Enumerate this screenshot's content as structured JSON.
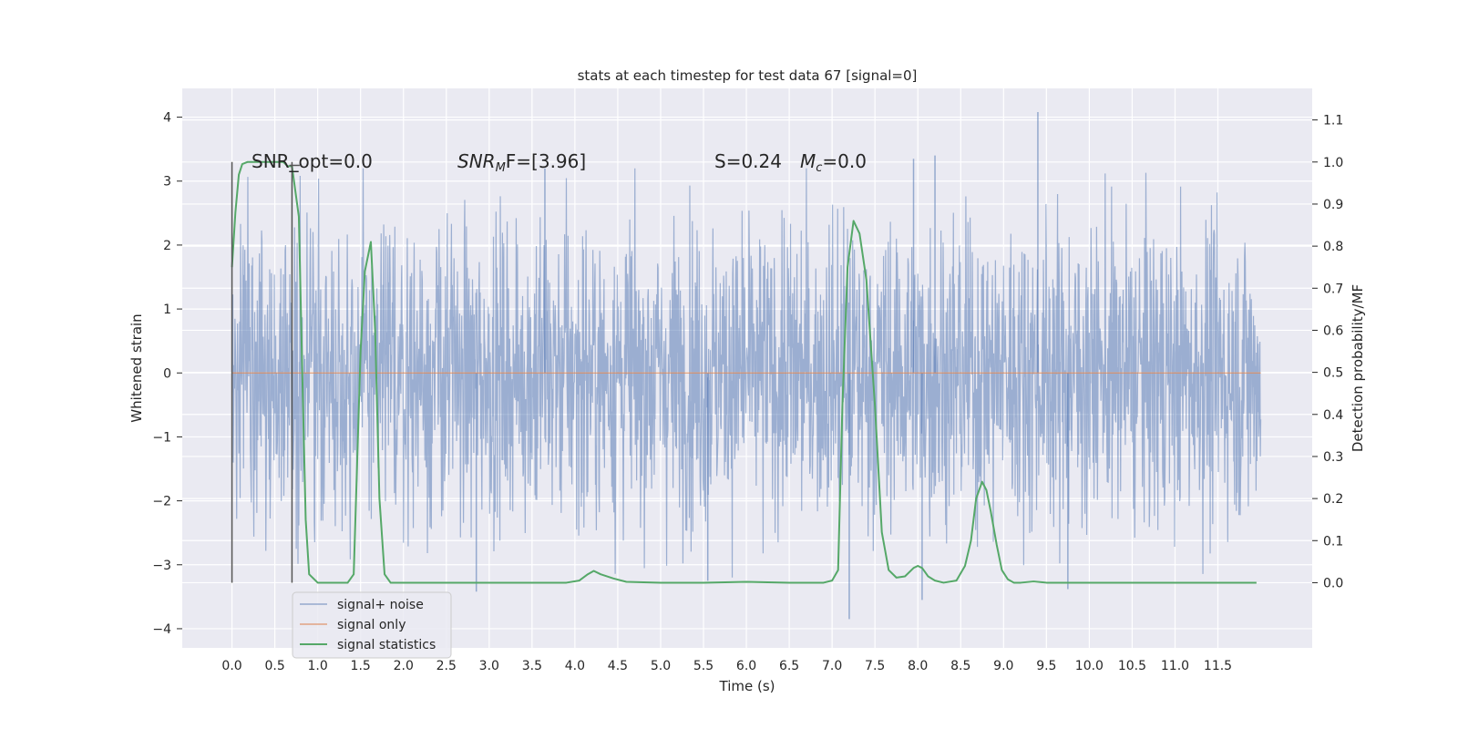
{
  "chart_data": {
    "type": "line",
    "title": "stats at each timestep for test data 67 [signal=0]",
    "xlabel": "Time (s)",
    "ylabel": "Whitened strain",
    "y2label": "Detection probability/MF",
    "xlim": [
      -0.58,
      12.6
    ],
    "ylim": [
      -4.3,
      4.45
    ],
    "y2lim": [
      -0.155,
      1.175
    ],
    "xticks": [
      "0.0",
      "0.5",
      "1.0",
      "1.5",
      "2.0",
      "2.5",
      "3.0",
      "3.5",
      "4.0",
      "4.5",
      "5.0",
      "5.5",
      "6.0",
      "6.5",
      "7.0",
      "7.5",
      "8.0",
      "8.5",
      "9.0",
      "9.5",
      "10.0",
      "10.5",
      "11.0",
      "11.5"
    ],
    "yticks": [
      "4",
      "3",
      "2",
      "1",
      "0",
      "−1",
      "−2",
      "−3",
      "−4"
    ],
    "y2ticks": [
      "1.1",
      "1.0",
      "0.9",
      "0.8",
      "0.7",
      "0.6",
      "0.5",
      "0.4",
      "0.3",
      "0.2",
      "0.1",
      "0.0"
    ],
    "grid": true,
    "legend_position": "lower-left",
    "colors": {
      "background": "#eaeaf2",
      "noise": "#4c72b0",
      "signal_only": "#dd8452",
      "statistics": "#55a868",
      "marker": "#555555"
    },
    "annotations": {
      "snr_opt_label": "SNR_opt=0.0",
      "snr_mf_label_main": "SNR",
      "snr_mf_label_sub": "M",
      "snr_mf_label_rest": "F=[3.96]",
      "s_label": "S=0.24",
      "mc_label_main": "M",
      "mc_label_sub": "c",
      "mc_label_rest": "=0.0"
    },
    "marker_lines_x": [
      0.0,
      0.7
    ],
    "series": [
      {
        "name": "signal+ noise",
        "noise_amplitude_typical": 1.5,
        "noise_spikes": [
          {
            "x": 9.4,
            "y": 4.08
          },
          {
            "x": 7.2,
            "y": -3.85
          },
          {
            "x": 2.85,
            "y": -3.42
          },
          {
            "x": 8.05,
            "y": -3.55
          },
          {
            "x": 9.75,
            "y": -3.38
          },
          {
            "x": 3.65,
            "y": 3.2
          },
          {
            "x": 7.95,
            "y": 3.35
          },
          {
            "x": 8.2,
            "y": 3.4
          },
          {
            "x": 5.55,
            "y": -3.25
          }
        ]
      },
      {
        "name": "signal only",
        "x": [
          0.0,
          12.0
        ],
        "y": [
          0.0,
          0.0
        ]
      },
      {
        "name": "signal statistics",
        "axis": "right",
        "x": [
          0.0,
          0.04,
          0.08,
          0.12,
          0.18,
          0.25,
          0.35,
          0.5,
          0.6,
          0.65,
          0.7,
          0.74,
          0.78,
          0.82,
          0.86,
          0.9,
          1.0,
          1.2,
          1.35,
          1.42,
          1.5,
          1.55,
          1.62,
          1.67,
          1.72,
          1.78,
          1.85,
          1.95,
          2.2,
          2.6,
          3.0,
          3.5,
          3.9,
          4.05,
          4.15,
          4.22,
          4.3,
          4.45,
          4.6,
          5.0,
          5.5,
          6.0,
          6.5,
          6.9,
          7.0,
          7.07,
          7.12,
          7.18,
          7.25,
          7.32,
          7.4,
          7.5,
          7.58,
          7.66,
          7.75,
          7.85,
          7.95,
          8.0,
          8.05,
          8.12,
          8.2,
          8.3,
          8.45,
          8.55,
          8.62,
          8.68,
          8.75,
          8.8,
          8.85,
          8.92,
          8.98,
          9.05,
          9.12,
          9.2,
          9.35,
          9.5,
          9.7,
          10.0,
          10.5,
          11.0,
          11.5,
          11.95
        ],
        "y": [
          0.75,
          0.88,
          0.97,
          0.995,
          1.0,
          1.0,
          1.0,
          1.0,
          1.0,
          0.99,
          0.99,
          0.93,
          0.87,
          0.5,
          0.15,
          0.02,
          0.0,
          0.0,
          0.0,
          0.02,
          0.55,
          0.74,
          0.81,
          0.6,
          0.2,
          0.02,
          0.0,
          0.0,
          0.0,
          0.0,
          0.0,
          0.0,
          0.0,
          0.005,
          0.02,
          0.028,
          0.02,
          0.01,
          0.002,
          0.0,
          0.0,
          0.002,
          0.0,
          0.0,
          0.005,
          0.03,
          0.42,
          0.75,
          0.86,
          0.83,
          0.72,
          0.42,
          0.12,
          0.03,
          0.012,
          0.015,
          0.035,
          0.04,
          0.035,
          0.015,
          0.005,
          0.0,
          0.005,
          0.04,
          0.1,
          0.2,
          0.24,
          0.22,
          0.17,
          0.09,
          0.03,
          0.008,
          0.0,
          0.0,
          0.003,
          0.0,
          0.0,
          0.0,
          0.0,
          0.0,
          0.0,
          0.0
        ]
      }
    ]
  }
}
